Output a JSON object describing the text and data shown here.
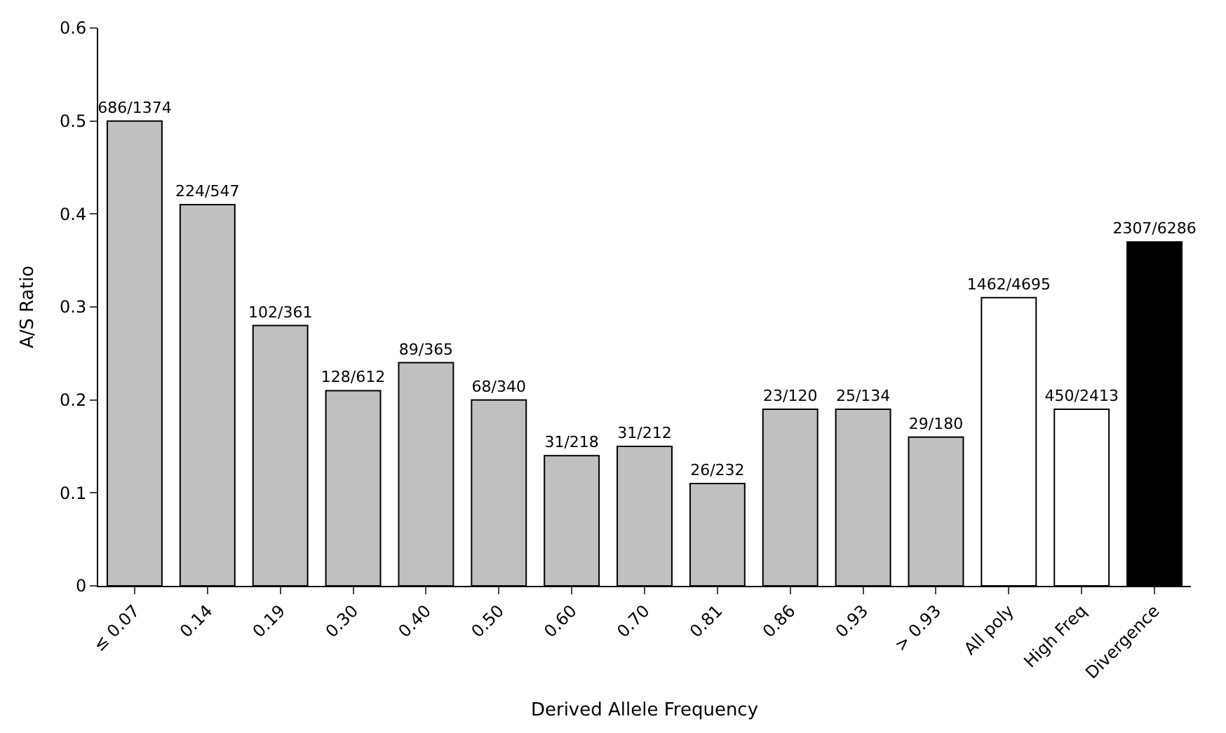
{
  "chart_data": {
    "type": "bar",
    "xlabel": "Derived Allele Frequency",
    "ylabel": "A/S Ratio",
    "categories": [
      "≤ 0.07",
      "0.14",
      "0.19",
      "0.30",
      "0.40",
      "0.50",
      "0.60",
      "0.70",
      "0.81",
      "0.86",
      "0.93",
      "> 0.93",
      "All poly",
      "High Freq",
      "Divergence"
    ],
    "values": [
      0.5,
      0.41,
      0.28,
      0.21,
      0.24,
      0.2,
      0.14,
      0.15,
      0.11,
      0.19,
      0.19,
      0.16,
      0.31,
      0.19,
      0.37
    ],
    "value_labels": [
      "686/1374",
      "224/547",
      "102/361",
      "128/612",
      "89/365",
      "68/340",
      "31/218",
      "31/212",
      "26/232",
      "23/120",
      "25/134",
      "29/180",
      "1462/4695",
      "450/2413",
      "2307/6286"
    ],
    "colors": [
      "#c0c0c0",
      "#c0c0c0",
      "#c0c0c0",
      "#c0c0c0",
      "#c0c0c0",
      "#c0c0c0",
      "#c0c0c0",
      "#c0c0c0",
      "#c0c0c0",
      "#c0c0c0",
      "#c0c0c0",
      "#c0c0c0",
      "#ffffff",
      "#ffffff",
      "#000000"
    ],
    "ylim": [
      0,
      0.6
    ],
    "yticks": [
      0,
      0.1,
      0.2,
      0.3,
      0.4,
      0.5,
      0.6
    ]
  }
}
